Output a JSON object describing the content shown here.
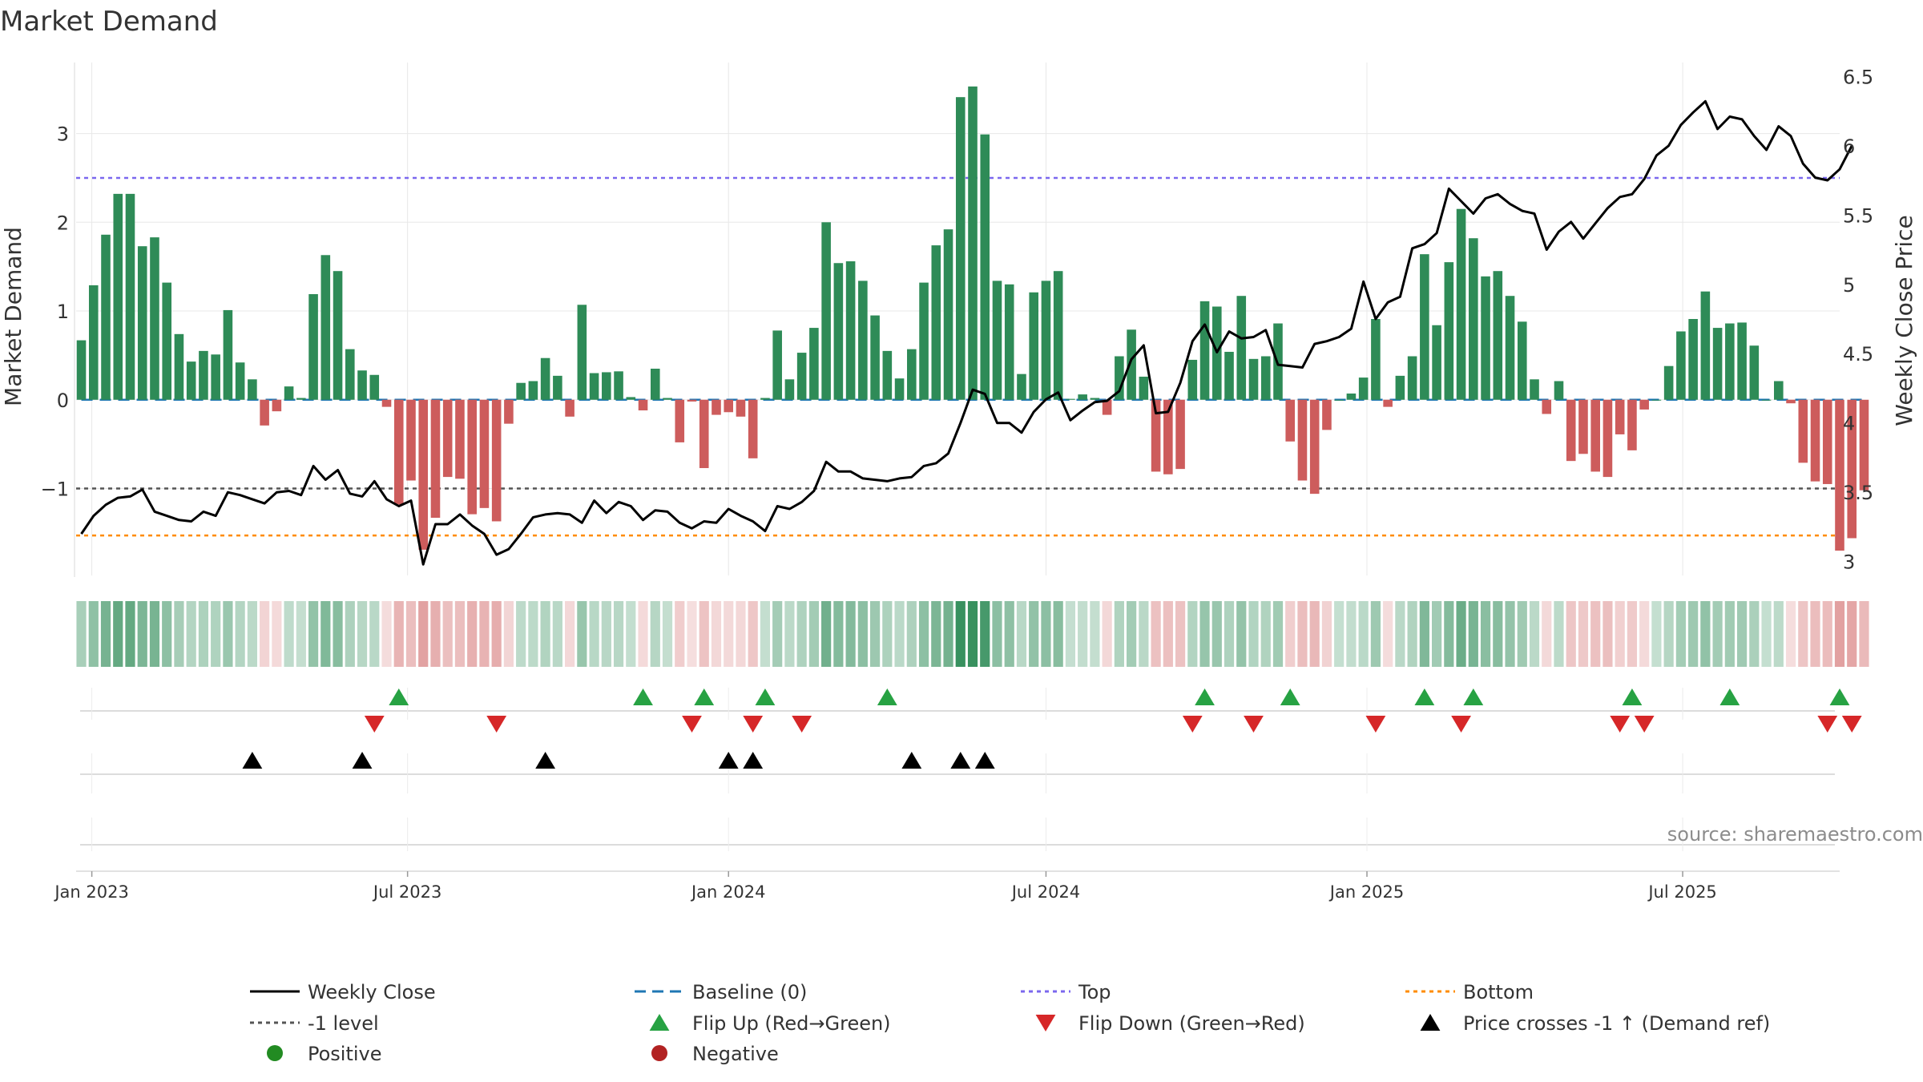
{
  "chart_data": {
    "type": "bar",
    "title": "Market Demand",
    "ylabel": "Market Demand",
    "y2label": "Weekly Close Price",
    "ylim": [
      -1.98,
      3.8
    ],
    "y2lim": [
      2.9,
      6.6
    ],
    "yticks": [
      3,
      2,
      1,
      0,
      -1
    ],
    "ytick_labels": [
      "3",
      "2",
      "1",
      "0",
      "−1"
    ],
    "y2ticks": [
      6.5,
      6,
      5.5,
      5,
      4.5,
      4,
      3.5,
      3
    ],
    "y2tick_labels": [
      "6.5",
      "6",
      "5.5",
      "5",
      "4.5",
      "4",
      "3.5",
      "3"
    ],
    "x_start": "2022-12-23",
    "x_end": "2025-09-29",
    "x_ticks": [
      {
        "label": "Jan 2023",
        "date": "2023-01-01"
      },
      {
        "label": "Jul 2023",
        "date": "2023-07-01"
      },
      {
        "label": "Jan 2024",
        "date": "2024-01-01"
      },
      {
        "label": "Jul 2024",
        "date": "2024-07-01"
      },
      {
        "label": "Jan 2025",
        "date": "2025-01-01"
      },
      {
        "label": "Jul 2025",
        "date": "2025-07-01"
      }
    ],
    "first_week": "2022-12-26",
    "week_step_days": 7,
    "demand": [
      0.67,
      1.29,
      1.86,
      2.32,
      2.32,
      1.73,
      1.83,
      1.32,
      0.74,
      0.43,
      0.55,
      0.51,
      1.01,
      0.42,
      0.23,
      -0.29,
      -0.13,
      0.15,
      0.02,
      1.19,
      1.63,
      1.45,
      0.57,
      0.33,
      0.28,
      -0.08,
      -1.18,
      -0.91,
      -1.69,
      -1.33,
      -0.87,
      -0.89,
      -1.29,
      -1.22,
      -1.37,
      -0.27,
      0.19,
      0.21,
      0.47,
      0.27,
      -0.19,
      1.07,
      0.3,
      0.31,
      0.32,
      0.03,
      -0.12,
      0.35,
      0.02,
      -0.48,
      -0.02,
      -0.77,
      -0.17,
      -0.14,
      -0.19,
      -0.66,
      0.02,
      0.78,
      0.23,
      0.53,
      0.81,
      2.0,
      1.54,
      1.56,
      1.34,
      0.95,
      0.55,
      0.24,
      0.57,
      1.32,
      1.74,
      1.92,
      3.41,
      3.53,
      2.99,
      1.34,
      1.3,
      0.29,
      1.21,
      1.34,
      1.45,
      0.01,
      0.06,
      0.02,
      -0.17,
      0.49,
      0.79,
      0.26,
      -0.81,
      -0.84,
      -0.78,
      0.45,
      1.11,
      1.05,
      0.54,
      1.17,
      0.46,
      0.49,
      0.86,
      -0.47,
      -0.91,
      -1.06,
      -0.34,
      0.0,
      0.07,
      0.25,
      0.91,
      -0.08,
      0.27,
      0.49,
      1.64,
      0.84,
      1.55,
      2.15,
      1.82,
      1.39,
      1.45,
      1.17,
      0.88,
      0.23,
      -0.16,
      0.21,
      -0.69,
      -0.61,
      -0.81,
      -0.87,
      -0.39,
      -0.57,
      -0.11,
      0.0,
      0.38,
      0.77,
      0.91,
      1.22,
      0.81,
      0.86,
      0.87,
      0.61,
      0.0,
      0.21,
      -0.04,
      -0.71,
      -0.92,
      -0.95,
      -1.7,
      -1.56,
      -1.02
    ],
    "close": [
      3.2,
      3.33,
      3.41,
      3.46,
      3.47,
      3.52,
      3.36,
      3.33,
      3.3,
      3.29,
      3.36,
      3.33,
      3.5,
      3.48,
      3.45,
      3.42,
      3.5,
      3.51,
      3.48,
      3.69,
      3.59,
      3.66,
      3.49,
      3.47,
      3.58,
      3.45,
      3.4,
      3.44,
      2.98,
      3.27,
      3.27,
      3.34,
      3.26,
      3.2,
      3.05,
      3.09,
      3.2,
      3.32,
      3.34,
      3.35,
      3.34,
      3.28,
      3.44,
      3.35,
      3.43,
      3.4,
      3.3,
      3.37,
      3.36,
      3.28,
      3.24,
      3.29,
      3.28,
      3.38,
      3.33,
      3.29,
      3.22,
      3.4,
      3.38,
      3.43,
      3.51,
      3.72,
      3.65,
      3.65,
      3.6,
      3.59,
      3.58,
      3.6,
      3.61,
      3.69,
      3.71,
      3.78,
      4.0,
      4.24,
      4.21,
      4.0,
      4.0,
      3.93,
      4.08,
      4.17,
      4.22,
      4.02,
      4.09,
      4.15,
      4.16,
      4.23,
      4.46,
      4.56,
      4.07,
      4.08,
      4.29,
      4.59,
      4.71,
      4.51,
      4.66,
      4.61,
      4.62,
      4.67,
      4.42,
      4.41,
      4.4,
      4.57,
      4.59,
      4.62,
      4.68,
      5.02,
      4.75,
      4.87,
      4.91,
      5.26,
      5.29,
      5.37,
      5.69,
      5.6,
      5.51,
      5.62,
      5.65,
      5.58,
      5.53,
      5.51,
      5.25,
      5.38,
      5.45,
      5.33,
      5.44,
      5.55,
      5.63,
      5.65,
      5.76,
      5.93,
      6.0,
      6.15,
      6.24,
      6.32,
      6.12,
      6.21,
      6.19,
      6.07,
      5.97,
      6.14,
      6.07,
      5.87,
      5.77,
      5.75,
      5.83,
      6.0
    ],
    "top_level": 2.5,
    "bottom_level": -1.53,
    "minus_one_level": -1,
    "baseline_level": 0,
    "flip_up_weeks": [
      26,
      46,
      51,
      56,
      66,
      92,
      99,
      110,
      114,
      127,
      135,
      144
    ],
    "flip_down_weeks": [
      24,
      34,
      50,
      55,
      59,
      91,
      96,
      106,
      113,
      126,
      128,
      143,
      145
    ],
    "price_cross_weeks": [
      14,
      23,
      38,
      53,
      55,
      68,
      72,
      74
    ],
    "colors": {
      "positive_bar": "#2e8b57",
      "negative_bar": "#cd5c5c",
      "close_line": "#000000",
      "baseline": "#1f77b4",
      "top": "#7b68ee",
      "bottom": "#ff8c00",
      "minus_one": "#555555",
      "flip_up": "#27a243",
      "flip_down": "#d62728",
      "cross": "#000000",
      "positive_dot": "#228b22",
      "negative_dot": "#b22222",
      "grid": "#e8e8e8"
    },
    "legend": [
      {
        "label": "Weekly Close",
        "kind": "solid",
        "color": "#000000"
      },
      {
        "label": "Baseline (0)",
        "kind": "dash",
        "color": "#1f77b4"
      },
      {
        "label": "Top",
        "kind": "dot",
        "color": "#7b68ee"
      },
      {
        "label": "Bottom",
        "kind": "dot",
        "color": "#ff8c00"
      },
      {
        "label": "-1 level",
        "kind": "dot",
        "color": "#555555"
      },
      {
        "label": "Flip Up (Red→Green)",
        "kind": "up",
        "color": "#27a243"
      },
      {
        "label": "Flip Down (Green→Red)",
        "kind": "down",
        "color": "#d62728"
      },
      {
        "label": "Price crosses -1 ↑ (Demand ref)",
        "kind": "up",
        "color": "#000000"
      },
      {
        "label": "Positive",
        "kind": "circle",
        "color": "#228b22"
      },
      {
        "label": "Negative",
        "kind": "circle",
        "color": "#b22222"
      }
    ],
    "source": "source: sharemaestro.com"
  }
}
